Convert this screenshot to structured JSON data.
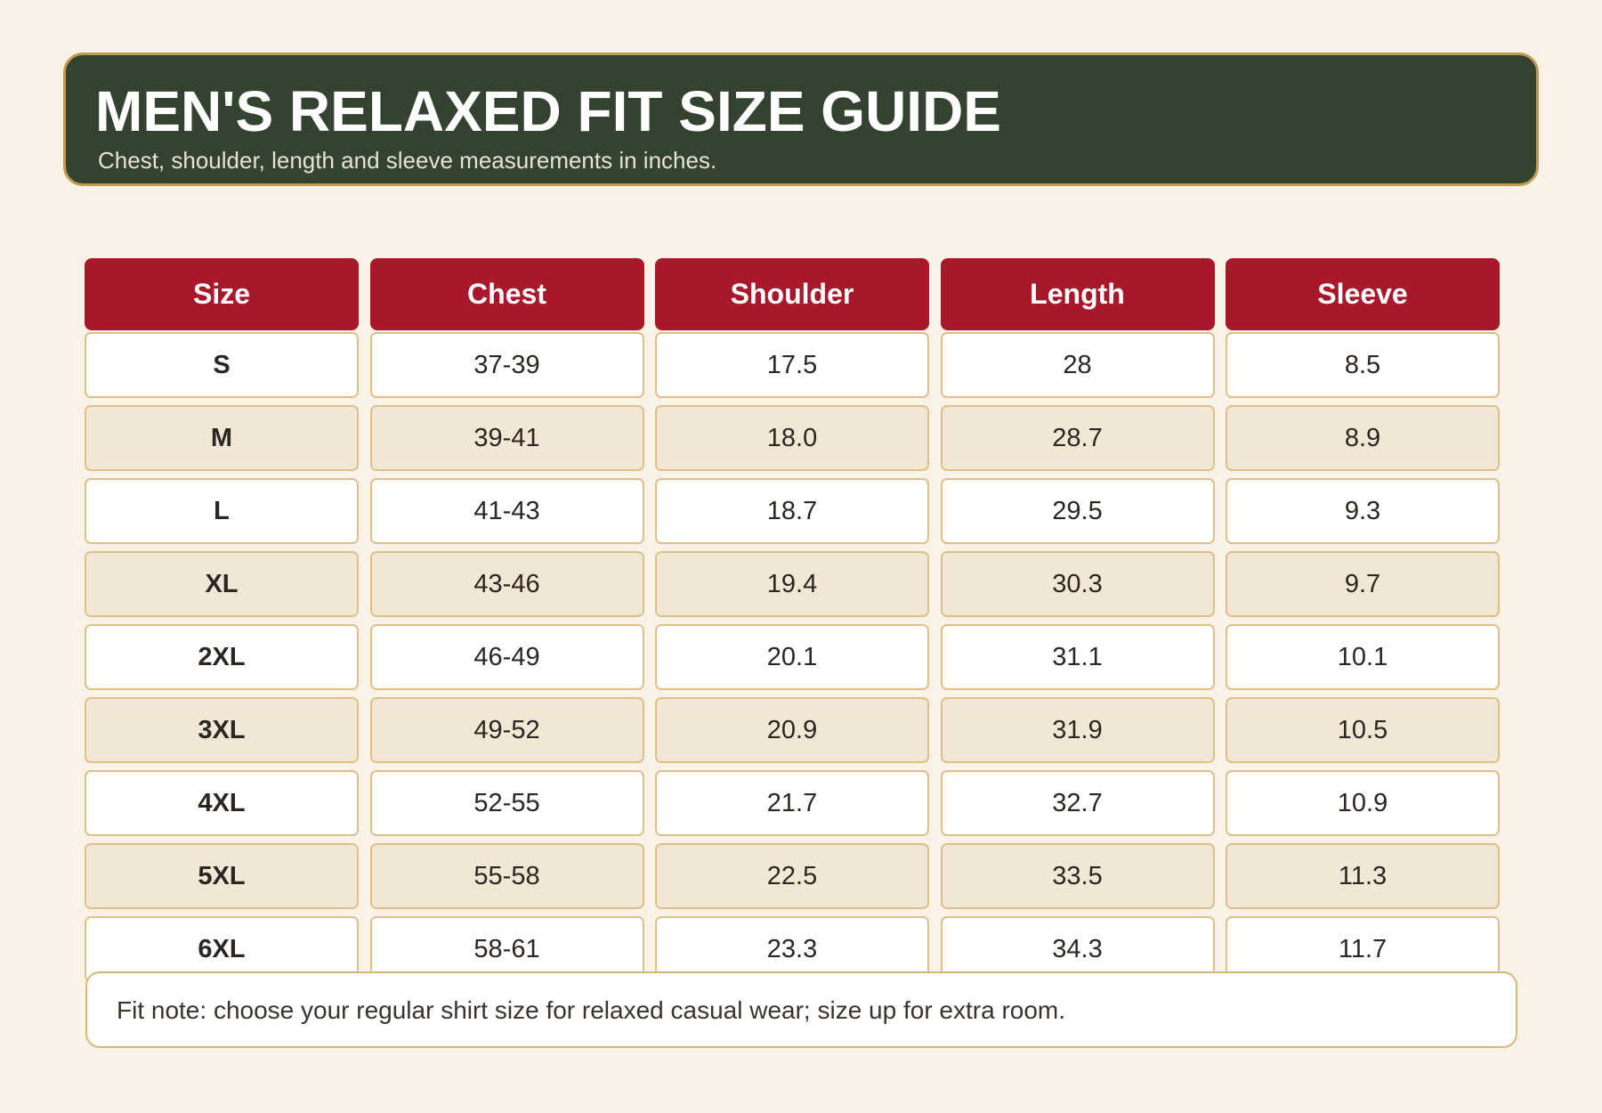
{
  "header": {
    "title": "MEN'S RELAXED FIT SIZE GUIDE",
    "subtitle": "Chest, shoulder, length and sleeve measurements in inches."
  },
  "table": {
    "columns": [
      "Size",
      "Chest",
      "Shoulder",
      "Length",
      "Sleeve"
    ],
    "rows": [
      [
        "S",
        "37-39",
        "17.5",
        "28",
        "8.5"
      ],
      [
        "M",
        "39-41",
        "18.0",
        "28.7",
        "8.9"
      ],
      [
        "L",
        "41-43",
        "18.7",
        "29.5",
        "9.3"
      ],
      [
        "XL",
        "43-46",
        "19.4",
        "30.3",
        "9.7"
      ],
      [
        "2XL",
        "46-49",
        "20.1",
        "31.1",
        "10.1"
      ],
      [
        "3XL",
        "49-52",
        "20.9",
        "31.9",
        "10.5"
      ],
      [
        "4XL",
        "52-55",
        "21.7",
        "32.7",
        "10.9"
      ],
      [
        "5XL",
        "55-58",
        "22.5",
        "33.5",
        "11.3"
      ],
      [
        "6XL",
        "58-61",
        "23.3",
        "34.3",
        "11.7"
      ]
    ]
  },
  "note": "Fit note: choose your regular shirt size for relaxed casual wear; size up for extra room."
}
